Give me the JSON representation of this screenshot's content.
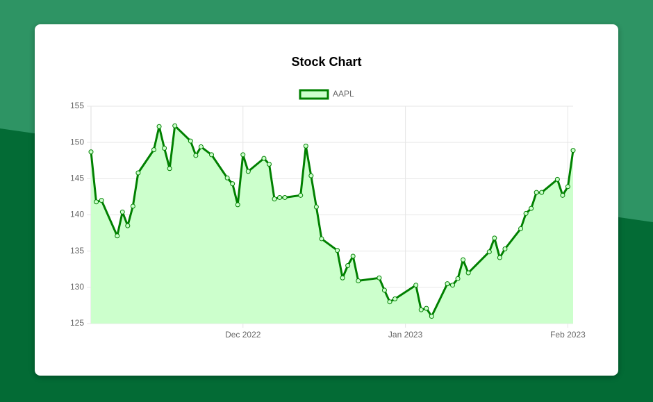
{
  "chart_data": {
    "type": "line",
    "title": "Stock Chart",
    "x": [
      "2022-11-02",
      "2022-11-03",
      "2022-11-04",
      "2022-11-07",
      "2022-11-08",
      "2022-11-09",
      "2022-11-10",
      "2022-11-11",
      "2022-11-14",
      "2022-11-15",
      "2022-11-16",
      "2022-11-17",
      "2022-11-18",
      "2022-11-21",
      "2022-11-22",
      "2022-11-23",
      "2022-11-25",
      "2022-11-28",
      "2022-11-29",
      "2022-11-30",
      "2022-12-01",
      "2022-12-02",
      "2022-12-05",
      "2022-12-06",
      "2022-12-07",
      "2022-12-08",
      "2022-12-09",
      "2022-12-12",
      "2022-12-13",
      "2022-12-14",
      "2022-12-15",
      "2022-12-16",
      "2022-12-19",
      "2022-12-20",
      "2022-12-21",
      "2022-12-22",
      "2022-12-23",
      "2022-12-27",
      "2022-12-28",
      "2022-12-29",
      "2022-12-30",
      "2023-01-03",
      "2023-01-04",
      "2023-01-05",
      "2023-01-06",
      "2023-01-09",
      "2023-01-10",
      "2023-01-11",
      "2023-01-12",
      "2023-01-13",
      "2023-01-17",
      "2023-01-18",
      "2023-01-19",
      "2023-01-20",
      "2023-01-23",
      "2023-01-24",
      "2023-01-25",
      "2023-01-26",
      "2023-01-27",
      "2023-01-30",
      "2023-01-31",
      "2023-02-01",
      "2023-02-02"
    ],
    "series": [
      {
        "name": "AAPL",
        "color": "#008000",
        "fill": "#ccffcc",
        "values": [
          148.7,
          141.8,
          142.0,
          137.1,
          140.4,
          138.5,
          141.2,
          145.8,
          149.0,
          152.2,
          149.2,
          146.4,
          152.3,
          150.2,
          148.2,
          149.4,
          148.3,
          145.1,
          144.3,
          141.4,
          148.3,
          146.0,
          147.8,
          147.0,
          142.2,
          142.4,
          142.4,
          142.7,
          149.5,
          145.4,
          141.1,
          136.7,
          135.1,
          131.3,
          133.0,
          134.3,
          130.9,
          131.3,
          129.6,
          128.0,
          128.4,
          130.3,
          126.9,
          127.1,
          126.0,
          130.5,
          130.3,
          131.2,
          133.8,
          132.0,
          134.9,
          136.8,
          134.1,
          135.3,
          138.1,
          140.2,
          140.9,
          143.1,
          143.1,
          144.9,
          142.7,
          143.9,
          148.9
        ]
      }
    ],
    "xlim": [
      "2022-11-02",
      "2023-02-02"
    ],
    "xticks": [
      {
        "value": "2022-12-01",
        "label": "Dec 2022"
      },
      {
        "value": "2023-01-01",
        "label": "Jan 2023"
      },
      {
        "value": "2023-02-01",
        "label": "Feb 2023"
      }
    ],
    "ylim": [
      125,
      155
    ],
    "yticks": [
      125,
      130,
      135,
      140,
      145,
      150,
      155
    ],
    "grid": true,
    "legend": "top"
  }
}
